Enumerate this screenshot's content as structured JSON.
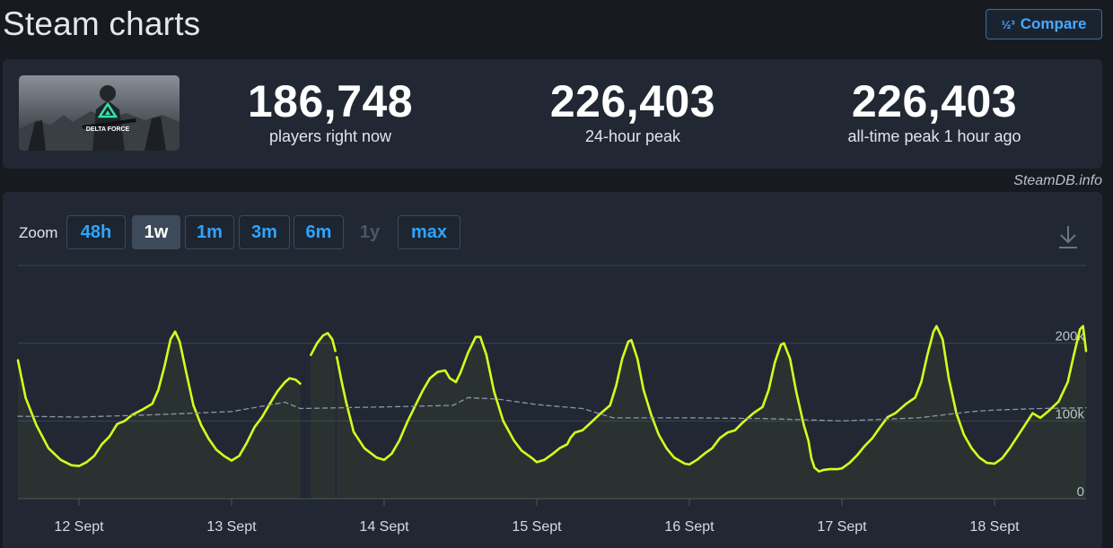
{
  "header": {
    "title": "Steam charts",
    "compare_label": "Compare",
    "compare_icon": "fraction-icon",
    "compare_glyph": "½³"
  },
  "game": {
    "thumbnail_text": "DELTA FORCE",
    "accent": "#2ee6a8"
  },
  "stats": [
    {
      "value": "186,748",
      "label": "players right now"
    },
    {
      "value": "226,403",
      "label": "24-hour peak"
    },
    {
      "value": "226,403",
      "label": "all-time peak 1 hour ago"
    }
  ],
  "credit": "SteamDB.info",
  "zoom": {
    "label": "Zoom",
    "options": [
      {
        "label": "48h",
        "state": "normal"
      },
      {
        "label": "1w",
        "state": "active"
      },
      {
        "label": "1m",
        "state": "normal"
      },
      {
        "label": "3m",
        "state": "normal"
      },
      {
        "label": "6m",
        "state": "normal"
      },
      {
        "label": "1y",
        "state": "disabled"
      },
      {
        "label": "max",
        "state": "normal"
      }
    ],
    "download_icon": "download-icon"
  },
  "chart_data": {
    "type": "line",
    "title": "",
    "xlabel": "",
    "ylabel": "",
    "ylim": [
      0,
      300000
    ],
    "y_ticks": [
      {
        "value": 0,
        "label": "0"
      },
      {
        "value": 100000,
        "label": "100k"
      },
      {
        "value": 200000,
        "label": "200k"
      }
    ],
    "x_range": [
      11.6,
      18.6
    ],
    "x_ticks": [
      {
        "value": 12,
        "label": "12 Sept"
      },
      {
        "value": 13,
        "label": "13 Sept"
      },
      {
        "value": 14,
        "label": "14 Sept"
      },
      {
        "value": 15,
        "label": "15 Sept"
      },
      {
        "value": 16,
        "label": "16 Sept"
      },
      {
        "value": 17,
        "label": "17 Sept"
      },
      {
        "value": 18,
        "label": "18 Sept"
      }
    ],
    "grid": true,
    "colors": {
      "players": "#d4ff1c",
      "average": "#8a96a6"
    },
    "series": [
      {
        "style": "solid",
        "segments": [
          [
            [
              11.6,
              178000
            ],
            [
              11.65,
              130000
            ],
            [
              11.72,
              95000
            ],
            [
              11.8,
              65000
            ],
            [
              11.88,
              50000
            ],
            [
              11.95,
              43000
            ],
            [
              12.0,
              42000
            ],
            [
              12.05,
              47000
            ],
            [
              12.1,
              55000
            ],
            [
              12.15,
              70000
            ],
            [
              12.2,
              80000
            ],
            [
              12.25,
              96000
            ],
            [
              12.3,
              100000
            ],
            [
              12.35,
              108000
            ],
            [
              12.42,
              115000
            ],
            [
              12.48,
              122000
            ],
            [
              12.52,
              140000
            ],
            [
              12.56,
              170000
            ],
            [
              12.6,
              205000
            ],
            [
              12.63,
              215000
            ],
            [
              12.66,
              202000
            ],
            [
              12.7,
              165000
            ],
            [
              12.75,
              120000
            ],
            [
              12.8,
              95000
            ],
            [
              12.85,
              77000
            ],
            [
              12.9,
              63000
            ],
            [
              12.95,
              55000
            ],
            [
              13.0,
              49000
            ]
          ],
          [
            [
              13.0,
              49000
            ],
            [
              13.05,
              55000
            ],
            [
              13.1,
              72000
            ],
            [
              13.15,
              92000
            ],
            [
              13.2,
              105000
            ],
            [
              13.25,
              122000
            ],
            [
              13.3,
              138000
            ],
            [
              13.35,
              150000
            ],
            [
              13.38,
              155000
            ],
            [
              13.42,
              153000
            ],
            [
              13.45,
              148000
            ]
          ],
          [
            [
              13.52,
              185000
            ],
            [
              13.56,
              200000
            ],
            [
              13.6,
              210000
            ],
            [
              13.63,
              213000
            ],
            [
              13.66,
              205000
            ],
            [
              13.68,
              190000
            ]
          ],
          [
            [
              13.69,
              182000
            ],
            [
              13.72,
              152000
            ],
            [
              13.75,
              125000
            ],
            [
              13.8,
              86000
            ],
            [
              13.82,
              80000
            ],
            [
              13.87,
              65000
            ],
            [
              13.95,
              53000
            ],
            [
              14.0,
              50000
            ],
            [
              14.05,
              58000
            ],
            [
              14.1,
              75000
            ],
            [
              14.15,
              98000
            ],
            [
              14.2,
              118000
            ],
            [
              14.25,
              138000
            ],
            [
              14.3,
              155000
            ],
            [
              14.35,
              163000
            ],
            [
              14.4,
              165000
            ],
            [
              14.43,
              155000
            ],
            [
              14.47,
              150000
            ],
            [
              14.5,
              162000
            ],
            [
              14.55,
              188000
            ],
            [
              14.6,
              208000
            ],
            [
              14.63,
              208000
            ],
            [
              14.67,
              185000
            ],
            [
              14.72,
              138000
            ],
            [
              14.78,
              100000
            ],
            [
              14.85,
              75000
            ],
            [
              14.9,
              62000
            ],
            [
              14.97,
              52000
            ],
            [
              15.0,
              47000
            ],
            [
              15.05,
              50000
            ],
            [
              15.1,
              57000
            ],
            [
              15.15,
              65000
            ],
            [
              15.2,
              70000
            ],
            [
              15.22,
              78000
            ],
            [
              15.25,
              85000
            ],
            [
              15.3,
              88000
            ],
            [
              15.35,
              97000
            ],
            [
              15.42,
              110000
            ],
            [
              15.48,
              120000
            ],
            [
              15.52,
              145000
            ],
            [
              15.56,
              180000
            ],
            [
              15.6,
              202000
            ],
            [
              15.62,
              204000
            ],
            [
              15.66,
              180000
            ],
            [
              15.7,
              140000
            ],
            [
              15.75,
              108000
            ],
            [
              15.8,
              82000
            ],
            [
              15.85,
              65000
            ],
            [
              15.9,
              53000
            ],
            [
              15.97,
              45000
            ],
            [
              16.0,
              44000
            ],
            [
              16.05,
              50000
            ],
            [
              16.1,
              58000
            ],
            [
              16.15,
              65000
            ],
            [
              16.2,
              78000
            ],
            [
              16.25,
              85000
            ],
            [
              16.3,
              88000
            ],
            [
              16.35,
              98000
            ],
            [
              16.42,
              110000
            ],
            [
              16.48,
              118000
            ],
            [
              16.52,
              140000
            ],
            [
              16.56,
              175000
            ],
            [
              16.6,
              198000
            ],
            [
              16.62,
              200000
            ],
            [
              16.66,
              180000
            ],
            [
              16.7,
              138000
            ],
            [
              16.75,
              95000
            ],
            [
              16.78,
              75000
            ],
            [
              16.8,
              52000
            ],
            [
              16.82,
              40000
            ],
            [
              16.85,
              35000
            ],
            [
              16.88,
              37000
            ],
            [
              16.92,
              38000
            ],
            [
              16.97,
              38000
            ],
            [
              17.0,
              39000
            ],
            [
              17.05,
              46000
            ],
            [
              17.1,
              56000
            ],
            [
              17.15,
              68000
            ],
            [
              17.2,
              78000
            ],
            [
              17.25,
              92000
            ],
            [
              17.3,
              105000
            ],
            [
              17.35,
              110000
            ],
            [
              17.42,
              122000
            ],
            [
              17.48,
              130000
            ],
            [
              17.52,
              150000
            ],
            [
              17.56,
              185000
            ],
            [
              17.6,
              215000
            ],
            [
              17.62,
              222000
            ],
            [
              17.66,
              205000
            ],
            [
              17.7,
              155000
            ],
            [
              17.75,
              110000
            ],
            [
              17.8,
              82000
            ],
            [
              17.85,
              65000
            ],
            [
              17.9,
              53000
            ],
            [
              17.95,
              46000
            ],
            [
              18.0,
              45000
            ],
            [
              18.05,
              52000
            ],
            [
              18.1,
              65000
            ],
            [
              18.15,
              80000
            ],
            [
              18.2,
              95000
            ],
            [
              18.25,
              110000
            ],
            [
              18.3,
              104000
            ],
            [
              18.35,
              112000
            ],
            [
              18.42,
              125000
            ],
            [
              18.48,
              150000
            ],
            [
              18.52,
              185000
            ],
            [
              18.56,
              218000
            ],
            [
              18.58,
              222000
            ],
            [
              18.6,
              190000
            ]
          ]
        ]
      },
      {
        "style": "dashed",
        "segments": [
          [
            [
              11.6,
              106000
            ],
            [
              12.0,
              105000
            ],
            [
              12.5,
              108000
            ],
            [
              13.0,
              112000
            ],
            [
              13.35,
              124000
            ],
            [
              13.45,
              116000
            ],
            [
              14.0,
              118000
            ],
            [
              14.45,
              120000
            ],
            [
              14.55,
              130000
            ],
            [
              14.75,
              128000
            ],
            [
              15.0,
              121000
            ],
            [
              15.3,
              116000
            ],
            [
              15.5,
              104000
            ],
            [
              16.0,
              104000
            ],
            [
              16.5,
              103000
            ],
            [
              17.0,
              100000
            ],
            [
              17.5,
              104000
            ],
            [
              17.85,
              112000
            ],
            [
              18.0,
              114000
            ],
            [
              18.3,
              116000
            ],
            [
              18.6,
              117000
            ]
          ]
        ]
      }
    ]
  }
}
